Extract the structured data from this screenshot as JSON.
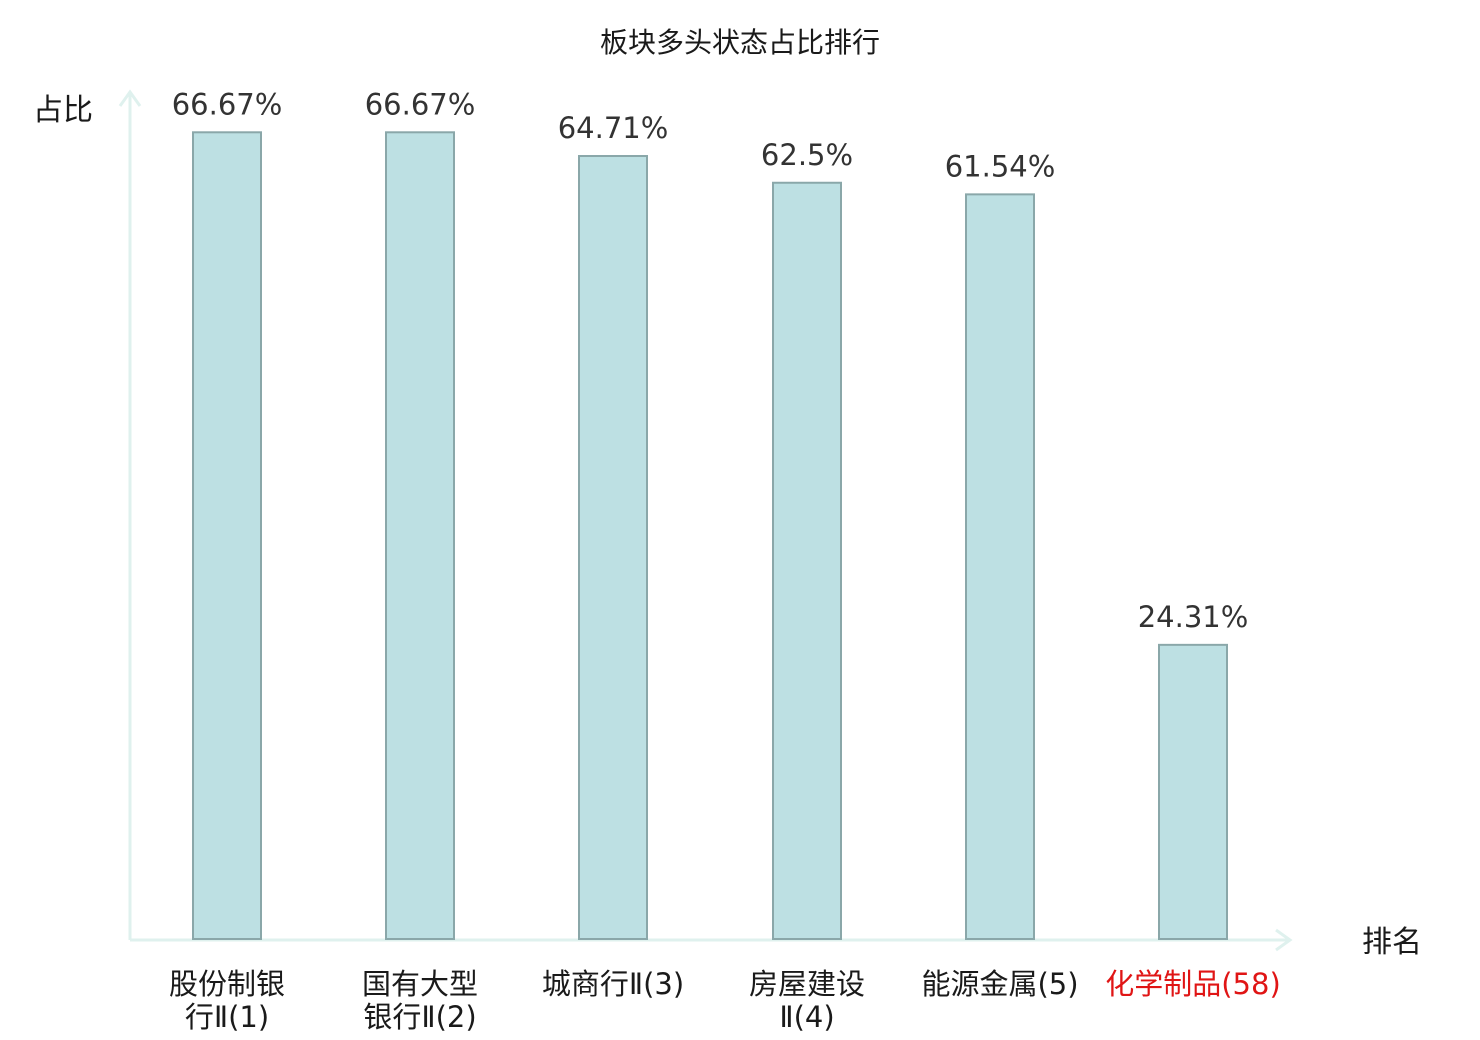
{
  "chart_data": {
    "type": "bar",
    "title": "板块多头状态占比排行",
    "ylabel": "占比",
    "xlabel": "排名",
    "ylim": [
      0,
      70
    ],
    "grid": false,
    "categories": [
      [
        "股份制银",
        "行Ⅱ(1)"
      ],
      [
        "国有大型",
        "银行Ⅱ(2)"
      ],
      [
        "城商行Ⅱ(3)"
      ],
      [
        "房屋建设",
        "Ⅱ(4)"
      ],
      [
        "能源金属(5)"
      ],
      [
        "化学制品(58)"
      ]
    ],
    "values": [
      66.67,
      66.67,
      64.71,
      62.5,
      61.54,
      24.31
    ],
    "value_labels": [
      "66.67%",
      "66.67%",
      "64.71%",
      "62.5%",
      "61.54%",
      "24.31%"
    ],
    "highlight_index": 5
  },
  "colors": {
    "bar_fill": "#bde0e3",
    "bar_stroke": "#8aa7a9",
    "axis": "#dff1ee",
    "highlight_text": "#e01515",
    "text": "#1a1a1a"
  }
}
